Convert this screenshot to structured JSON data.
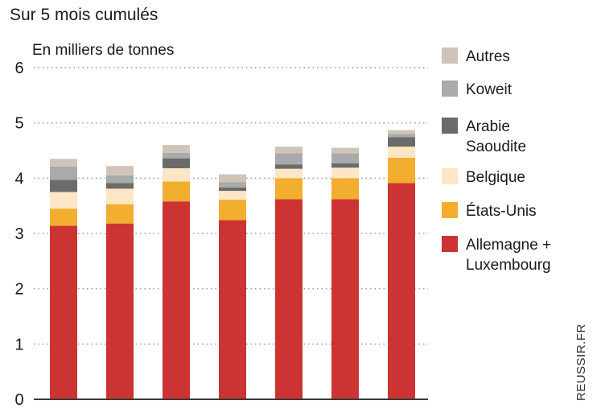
{
  "chart_data": {
    "type": "bar",
    "stacked": true,
    "title": "Sur 5 mois cumulés",
    "ylabel": "En milliers de tonnes",
    "ylim": [
      0,
      6
    ],
    "yticks": [
      "0",
      "1",
      "2",
      "3",
      "4",
      "5",
      "6"
    ],
    "categories": [
      "",
      "",
      "",
      "",
      "",
      "",
      ""
    ],
    "grid": true,
    "legend_position": "right",
    "series": [
      {
        "name": "Allemagne + Luxembourg",
        "name_lines": [
          "Allemagne +",
          "Luxembourg"
        ],
        "color": "#cc3333",
        "values": [
          3.14,
          3.18,
          3.58,
          3.24,
          3.62,
          3.62,
          3.91
        ]
      },
      {
        "name": "États-Unis",
        "name_lines": [
          "États-Unis"
        ],
        "color": "#f2ae2e",
        "values": [
          0.31,
          0.35,
          0.36,
          0.37,
          0.38,
          0.38,
          0.46
        ]
      },
      {
        "name": "Belgique",
        "name_lines": [
          "Belgique"
        ],
        "color": "#fde6c6",
        "values": [
          0.3,
          0.28,
          0.24,
          0.16,
          0.17,
          0.19,
          0.2
        ]
      },
      {
        "name": "Arabie Saoudite",
        "name_lines": [
          "Arabie",
          "Saoudite"
        ],
        "color": "#6b6b6b",
        "values": [
          0.22,
          0.1,
          0.18,
          0.06,
          0.08,
          0.08,
          0.17
        ]
      },
      {
        "name": "Koweit",
        "name_lines": [
          "Koweit"
        ],
        "color": "#aaaaaa",
        "values": [
          0.24,
          0.14,
          0.1,
          0.1,
          0.2,
          0.18,
          0.06
        ]
      },
      {
        "name": "Autres",
        "name_lines": [
          "Autres"
        ],
        "color": "#cfc4b7",
        "values": [
          0.14,
          0.17,
          0.14,
          0.14,
          0.12,
          0.1,
          0.07
        ]
      }
    ]
  },
  "credit": "REUSSIR.FR"
}
